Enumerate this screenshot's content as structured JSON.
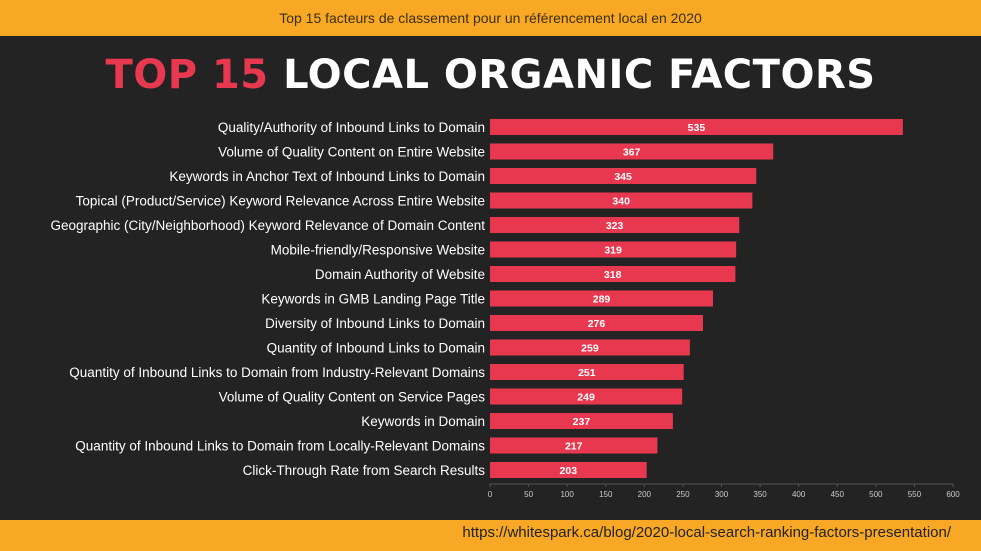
{
  "header": {
    "banner_text": "Top 15 facteurs de classement pour un référencement local en 2020"
  },
  "title": {
    "accent": "TOP 15",
    "rest": "LOCAL ORGANIC FACTORS"
  },
  "footer": {
    "source_url": "https://whitespark.ca/blog/2020-local-search-ranking-factors-presentation/"
  },
  "colors": {
    "bar": "#e8384f",
    "panel": "#232323",
    "banner": "#f9a825",
    "label_text": "#ffffff",
    "tick_text": "#cccccc"
  },
  "chart_data": {
    "type": "bar",
    "orientation": "horizontal",
    "categories": [
      "Quality/Authority of Inbound Links to Domain",
      "Volume of Quality Content on Entire Website",
      "Keywords in Anchor Text of Inbound Links to Domain",
      "Topical (Product/Service) Keyword Relevance Across Entire Website",
      "Geographic (City/Neighborhood) Keyword Relevance of Domain Content",
      "Mobile-friendly/Responsive Website",
      "Domain Authority of Website",
      "Keywords in GMB Landing Page Title",
      "Diversity of Inbound Links to Domain",
      "Quantity of Inbound Links to Domain",
      "Quantity of Inbound Links to Domain from Industry-Relevant Domains",
      "Volume of Quality Content on Service Pages",
      "Keywords in Domain",
      "Quantity of Inbound Links to Domain from Locally-Relevant Domains",
      "Click-Through Rate from Search Results"
    ],
    "values": [
      535,
      367,
      345,
      340,
      323,
      319,
      318,
      289,
      276,
      259,
      251,
      249,
      237,
      217,
      203
    ],
    "xlim": [
      0,
      600
    ],
    "xticks": [
      0,
      50,
      100,
      150,
      200,
      250,
      300,
      350,
      400,
      450,
      500,
      550,
      600
    ],
    "data_labels": true,
    "grid": false
  }
}
